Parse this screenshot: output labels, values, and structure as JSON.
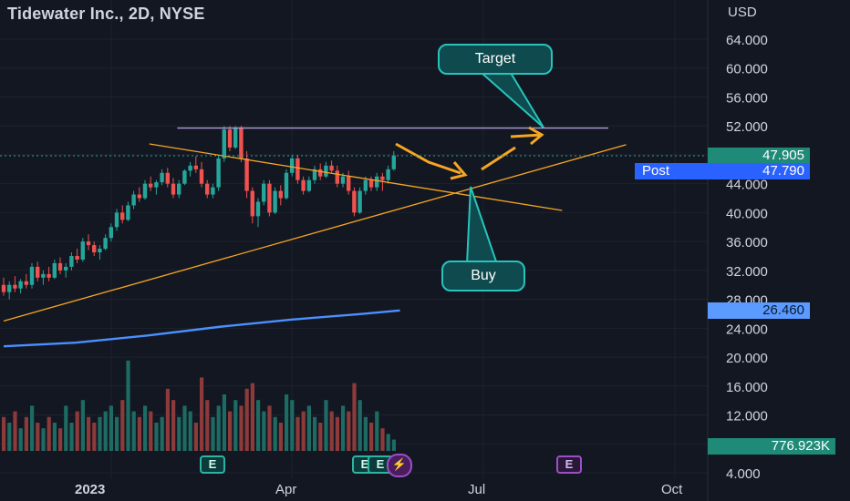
{
  "header": {
    "title": "Tidewater Inc., 2D, NYSE",
    "currency": "USD"
  },
  "colors": {
    "background": "#131722",
    "up": "#26a69a",
    "down": "#ef5350",
    "ma": "#4a90ff",
    "trend": "#f5a623",
    "resistance": "#b39ddb",
    "callout": "#27c4bb"
  },
  "price_tags": {
    "last": {
      "value": "47.905",
      "bg": "#1f8a78"
    },
    "post": {
      "label": "Post",
      "value": "47.790",
      "bg": "#2962ff"
    },
    "ma": {
      "value": "26.460",
      "bg": "#5b9bff"
    },
    "volume": {
      "value": "776.923K",
      "bg": "#1f8a78"
    }
  },
  "annotations": {
    "target": "Target",
    "buy": "Buy"
  },
  "earnings": {
    "label": "E",
    "lightning": "⚡"
  },
  "chart_data": {
    "type": "candlestick",
    "y_axis": {
      "ticks": [
        "64.000",
        "60.000",
        "56.000",
        "52.000",
        "48.000",
        "44.000",
        "40.000",
        "36.000",
        "32.000",
        "28.000",
        "24.000",
        "20.000",
        "16.000",
        "12.000",
        "8.000",
        "4.000"
      ],
      "range": [
        4,
        67
      ]
    },
    "x_axis": {
      "labels": [
        {
          "text": "2023",
          "bold": true
        },
        {
          "text": "Apr",
          "bold": false
        },
        {
          "text": "Jul",
          "bold": false
        },
        {
          "text": "Oct",
          "bold": false
        }
      ]
    },
    "candles": [
      [
        30.0,
        31.0,
        28.5,
        29.0
      ],
      [
        29.0,
        30.5,
        28.0,
        30.0
      ],
      [
        30.0,
        31.2,
        29.0,
        29.5
      ],
      [
        29.5,
        30.8,
        28.8,
        30.5
      ],
      [
        30.5,
        31.5,
        29.5,
        30.0
      ],
      [
        30.0,
        33.0,
        29.5,
        32.5
      ],
      [
        32.5,
        33.2,
        30.5,
        31.0
      ],
      [
        31.0,
        32.0,
        30.0,
        31.5
      ],
      [
        31.5,
        32.5,
        30.5,
        31.0
      ],
      [
        31.0,
        33.5,
        30.8,
        33.0
      ],
      [
        33.0,
        33.8,
        31.5,
        32.0
      ],
      [
        32.0,
        33.0,
        31.0,
        32.5
      ],
      [
        32.5,
        34.5,
        32.0,
        34.0
      ],
      [
        34.0,
        35.0,
        33.0,
        33.5
      ],
      [
        33.5,
        36.5,
        33.2,
        36.0
      ],
      [
        36.0,
        37.0,
        34.8,
        35.5
      ],
      [
        35.5,
        36.0,
        34.0,
        34.5
      ],
      [
        34.5,
        35.5,
        33.5,
        35.0
      ],
      [
        35.0,
        37.0,
        34.8,
        36.5
      ],
      [
        36.5,
        38.5,
        36.0,
        38.0
      ],
      [
        38.0,
        40.5,
        37.5,
        40.0
      ],
      [
        40.0,
        41.0,
        38.5,
        39.0
      ],
      [
        39.0,
        41.5,
        38.8,
        41.0
      ],
      [
        41.0,
        43.0,
        40.5,
        42.5
      ],
      [
        42.5,
        43.5,
        41.5,
        42.0
      ],
      [
        42.0,
        44.5,
        41.8,
        44.0
      ],
      [
        44.0,
        45.0,
        43.0,
        43.5
      ],
      [
        43.5,
        44.5,
        42.5,
        44.2
      ],
      [
        44.2,
        46.0,
        43.8,
        45.5
      ],
      [
        45.5,
        46.2,
        43.5,
        44.0
      ],
      [
        44.0,
        44.8,
        42.0,
        42.5
      ],
      [
        42.5,
        44.5,
        42.0,
        44.0
      ],
      [
        44.0,
        46.0,
        43.8,
        45.8
      ],
      [
        45.8,
        47.0,
        45.0,
        46.5
      ],
      [
        46.5,
        47.8,
        45.5,
        46.0
      ],
      [
        46.0,
        47.0,
        43.5,
        44.0
      ],
      [
        44.0,
        44.5,
        42.0,
        42.5
      ],
      [
        42.5,
        44.0,
        42.0,
        43.5
      ],
      [
        43.5,
        48.0,
        43.0,
        47.5
      ],
      [
        47.5,
        52.0,
        47.0,
        51.5
      ],
      [
        51.5,
        52.0,
        48.5,
        49.0
      ],
      [
        49.0,
        52.0,
        48.8,
        51.8
      ],
      [
        51.8,
        52.0,
        47.0,
        47.5
      ],
      [
        47.5,
        48.5,
        42.0,
        43.0
      ],
      [
        43.0,
        43.5,
        38.5,
        39.5
      ],
      [
        39.5,
        42.0,
        38.0,
        41.5
      ],
      [
        41.5,
        44.5,
        41.0,
        44.0
      ],
      [
        44.0,
        44.5,
        39.5,
        40.0
      ],
      [
        40.0,
        43.5,
        39.8,
        43.0
      ],
      [
        43.0,
        43.8,
        41.0,
        42.0
      ],
      [
        42.0,
        46.0,
        41.8,
        45.5
      ],
      [
        45.5,
        48.0,
        45.0,
        47.5
      ],
      [
        47.5,
        48.0,
        44.0,
        44.5
      ],
      [
        44.5,
        45.0,
        42.5,
        43.0
      ],
      [
        43.0,
        45.0,
        42.8,
        44.5
      ],
      [
        44.5,
        46.5,
        44.0,
        46.0
      ],
      [
        46.0,
        46.8,
        44.5,
        45.0
      ],
      [
        45.0,
        47.0,
        44.8,
        46.5
      ],
      [
        46.5,
        47.2,
        45.5,
        45.8
      ],
      [
        45.8,
        46.5,
        43.5,
        44.0
      ],
      [
        44.0,
        45.5,
        43.5,
        45.0
      ],
      [
        45.0,
        45.8,
        42.5,
        43.0
      ],
      [
        43.0,
        43.5,
        39.5,
        40.0
      ],
      [
        40.0,
        43.5,
        39.8,
        43.0
      ],
      [
        43.0,
        45.0,
        42.5,
        44.5
      ],
      [
        44.5,
        45.0,
        43.0,
        43.5
      ],
      [
        43.5,
        45.5,
        43.0,
        45.0
      ],
      [
        45.0,
        45.5,
        43.0,
        44.5
      ],
      [
        44.5,
        46.5,
        44.0,
        46.0
      ],
      [
        46.0,
        48.5,
        45.8,
        47.9
      ]
    ],
    "volume": [
      6,
      5,
      7,
      4,
      6,
      8,
      5,
      4,
      6,
      5,
      4,
      8,
      5,
      7,
      9,
      6,
      5,
      6,
      7,
      8,
      6,
      9,
      16,
      7,
      6,
      8,
      7,
      5,
      6,
      11,
      9,
      6,
      8,
      7,
      5,
      13,
      9,
      6,
      8,
      10,
      7,
      9,
      8,
      11,
      12,
      9,
      7,
      8,
      6,
      5,
      10,
      9,
      6,
      7,
      8,
      6,
      5,
      9,
      7,
      6,
      8,
      7,
      12,
      9,
      6,
      5,
      7,
      4,
      3,
      2
    ],
    "moving_average": [
      [
        0,
        21.5
      ],
      [
        20,
        22.0
      ],
      [
        40,
        23.0
      ],
      [
        60,
        24.2
      ],
      [
        80,
        25.2
      ],
      [
        100,
        26.0
      ],
      [
        110,
        26.46
      ]
    ],
    "trendlines": [
      {
        "name": "descending",
        "points": [
          [
            47,
            49.5
          ],
          [
            157,
            40.3
          ]
        ]
      },
      {
        "name": "ascending",
        "points": [
          [
            0,
            25.0
          ],
          [
            175,
            49.4
          ]
        ]
      },
      {
        "name": "resistance",
        "points": [
          [
            56,
            51.7
          ],
          [
            170,
            51.7
          ]
        ]
      }
    ]
  }
}
